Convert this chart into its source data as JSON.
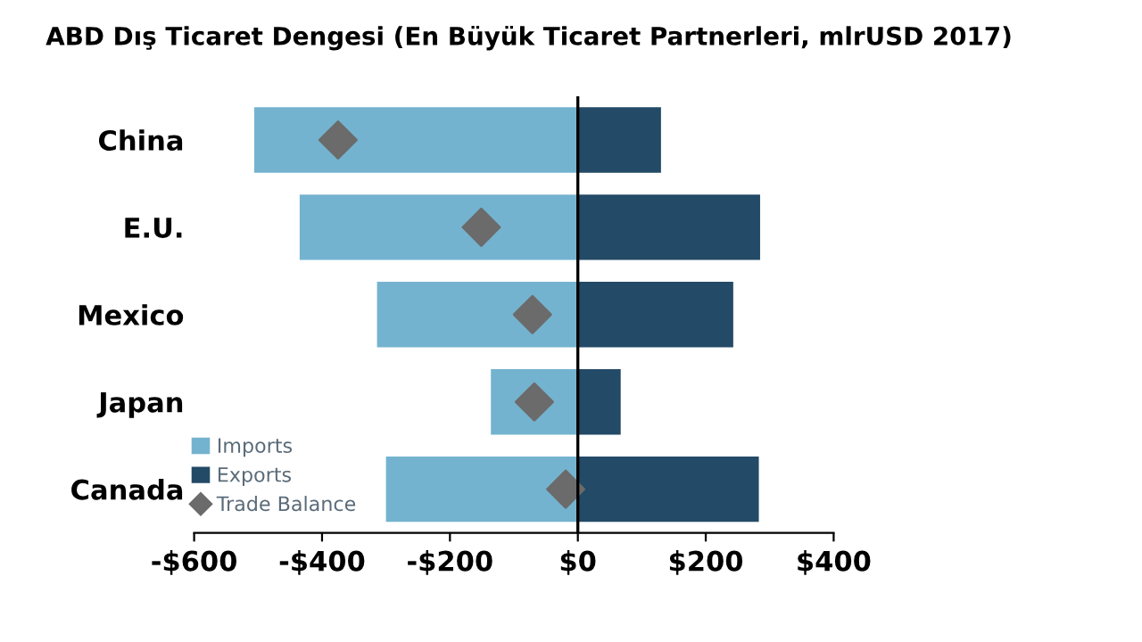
{
  "chart_data": {
    "type": "bar",
    "orientation": "horizontal",
    "stacked": true,
    "title": "ABD Dış Ticaret Dengesi (En Büyük Ticaret Partnerleri, mlrUSD 2017)",
    "categories": [
      "China",
      "E.U.",
      "Mexico",
      "Japan",
      "Canada"
    ],
    "series": [
      {
        "name": "Imports",
        "color": "#74b3cf",
        "values": [
          -506,
          -435,
          -314,
          -136,
          -300
        ]
      },
      {
        "name": "Exports",
        "color": "#234a66",
        "values": [
          130,
          285,
          243,
          67,
          283
        ]
      },
      {
        "name": "Trade Balance",
        "type": "scatter",
        "marker": "diamond",
        "color": "#6b6b6b",
        "values": [
          -375,
          -151,
          -71,
          -68,
          -19
        ]
      }
    ],
    "xlim": [
      -600,
      400
    ],
    "xticks": [
      {
        "value": -600,
        "label": "-$600"
      },
      {
        "value": -400,
        "label": "-$400"
      },
      {
        "value": -200,
        "label": "-$200"
      },
      {
        "value": 0,
        "label": "$0"
      },
      {
        "value": 200,
        "label": "$200"
      },
      {
        "value": 400,
        "label": "$400"
      }
    ],
    "ref_lines": [
      {
        "axis": "x",
        "value": 0,
        "color": "#000000"
      }
    ],
    "grid": false,
    "legend": "bottom left"
  }
}
